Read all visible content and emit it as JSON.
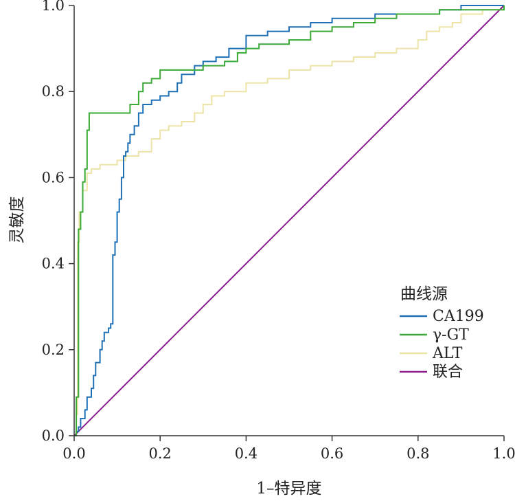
{
  "chart_data": {
    "type": "line",
    "title": "",
    "xlabel": "1–特异度",
    "ylabel": "灵敏度",
    "xlim": [
      0,
      1
    ],
    "ylim": [
      0,
      1
    ],
    "xticks": [
      "0.0",
      "0.2",
      "0.4",
      "0.6",
      "0.8",
      "1.0"
    ],
    "yticks": [
      "0.0",
      "0.2",
      "0.4",
      "0.6",
      "0.8",
      "1.0"
    ],
    "grid": false,
    "legend": {
      "title": "曲线源",
      "placement": "bottom-right"
    },
    "series": [
      {
        "name": "CA199",
        "color": "#1f6fb5",
        "points": [
          [
            0,
            0
          ],
          [
            0.005,
            0.01
          ],
          [
            0.01,
            0.02
          ],
          [
            0.015,
            0.04
          ],
          [
            0.025,
            0.06
          ],
          [
            0.03,
            0.09
          ],
          [
            0.04,
            0.11
          ],
          [
            0.045,
            0.14
          ],
          [
            0.05,
            0.17
          ],
          [
            0.06,
            0.2
          ],
          [
            0.065,
            0.22
          ],
          [
            0.07,
            0.24
          ],
          [
            0.08,
            0.25
          ],
          [
            0.085,
            0.26
          ],
          [
            0.09,
            0.42
          ],
          [
            0.095,
            0.45
          ],
          [
            0.1,
            0.52
          ],
          [
            0.105,
            0.55
          ],
          [
            0.11,
            0.6
          ],
          [
            0.115,
            0.65
          ],
          [
            0.12,
            0.66
          ],
          [
            0.125,
            0.68
          ],
          [
            0.13,
            0.7
          ],
          [
            0.14,
            0.72
          ],
          [
            0.15,
            0.75
          ],
          [
            0.16,
            0.77
          ],
          [
            0.18,
            0.78
          ],
          [
            0.2,
            0.79
          ],
          [
            0.22,
            0.8
          ],
          [
            0.24,
            0.82
          ],
          [
            0.25,
            0.84
          ],
          [
            0.28,
            0.86
          ],
          [
            0.3,
            0.87
          ],
          [
            0.33,
            0.88
          ],
          [
            0.36,
            0.9
          ],
          [
            0.4,
            0.93
          ],
          [
            0.45,
            0.94
          ],
          [
            0.5,
            0.95
          ],
          [
            0.55,
            0.96
          ],
          [
            0.6,
            0.97
          ],
          [
            0.65,
            0.97
          ],
          [
            0.7,
            0.98
          ],
          [
            0.8,
            0.98
          ],
          [
            0.85,
            0.99
          ],
          [
            0.9,
            1.0
          ],
          [
            1.0,
            1.0
          ]
        ]
      },
      {
        "name": "γ-GT",
        "color": "#3aa935",
        "points": [
          [
            0,
            0
          ],
          [
            0.005,
            0.05
          ],
          [
            0.005,
            0.09
          ],
          [
            0.01,
            0.48
          ],
          [
            0.015,
            0.52
          ],
          [
            0.02,
            0.59
          ],
          [
            0.025,
            0.62
          ],
          [
            0.03,
            0.71
          ],
          [
            0.035,
            0.75
          ],
          [
            0.12,
            0.75
          ],
          [
            0.13,
            0.77
          ],
          [
            0.15,
            0.8
          ],
          [
            0.16,
            0.82
          ],
          [
            0.18,
            0.83
          ],
          [
            0.2,
            0.85
          ],
          [
            0.25,
            0.85
          ],
          [
            0.3,
            0.86
          ],
          [
            0.35,
            0.87
          ],
          [
            0.38,
            0.89
          ],
          [
            0.4,
            0.9
          ],
          [
            0.43,
            0.91
          ],
          [
            0.5,
            0.92
          ],
          [
            0.55,
            0.94
          ],
          [
            0.6,
            0.95
          ],
          [
            0.65,
            0.96
          ],
          [
            0.7,
            0.97
          ],
          [
            0.75,
            0.98
          ],
          [
            0.8,
            0.98
          ],
          [
            0.85,
            0.99
          ],
          [
            0.9,
            0.99
          ],
          [
            1.0,
            1.0
          ]
        ]
      },
      {
        "name": "ALT",
        "color": "#ece4a6",
        "points": [
          [
            0,
            0
          ],
          [
            0.005,
            0.05
          ],
          [
            0.008,
            0.45
          ],
          [
            0.012,
            0.52
          ],
          [
            0.02,
            0.57
          ],
          [
            0.03,
            0.61
          ],
          [
            0.04,
            0.62
          ],
          [
            0.06,
            0.63
          ],
          [
            0.1,
            0.64
          ],
          [
            0.12,
            0.65
          ],
          [
            0.15,
            0.66
          ],
          [
            0.18,
            0.69
          ],
          [
            0.2,
            0.71
          ],
          [
            0.22,
            0.72
          ],
          [
            0.25,
            0.73
          ],
          [
            0.28,
            0.75
          ],
          [
            0.3,
            0.77
          ],
          [
            0.32,
            0.79
          ],
          [
            0.35,
            0.8
          ],
          [
            0.4,
            0.82
          ],
          [
            0.45,
            0.83
          ],
          [
            0.5,
            0.85
          ],
          [
            0.55,
            0.86
          ],
          [
            0.6,
            0.87
          ],
          [
            0.65,
            0.88
          ],
          [
            0.7,
            0.89
          ],
          [
            0.75,
            0.9
          ],
          [
            0.8,
            0.92
          ],
          [
            0.82,
            0.94
          ],
          [
            0.85,
            0.95
          ],
          [
            0.88,
            0.96
          ],
          [
            0.9,
            0.98
          ],
          [
            0.95,
            0.99
          ],
          [
            1.0,
            1.0
          ]
        ]
      },
      {
        "name": "联合",
        "color": "#8b1a8b",
        "points": [
          [
            0,
            0
          ],
          [
            1,
            1
          ]
        ]
      }
    ]
  }
}
